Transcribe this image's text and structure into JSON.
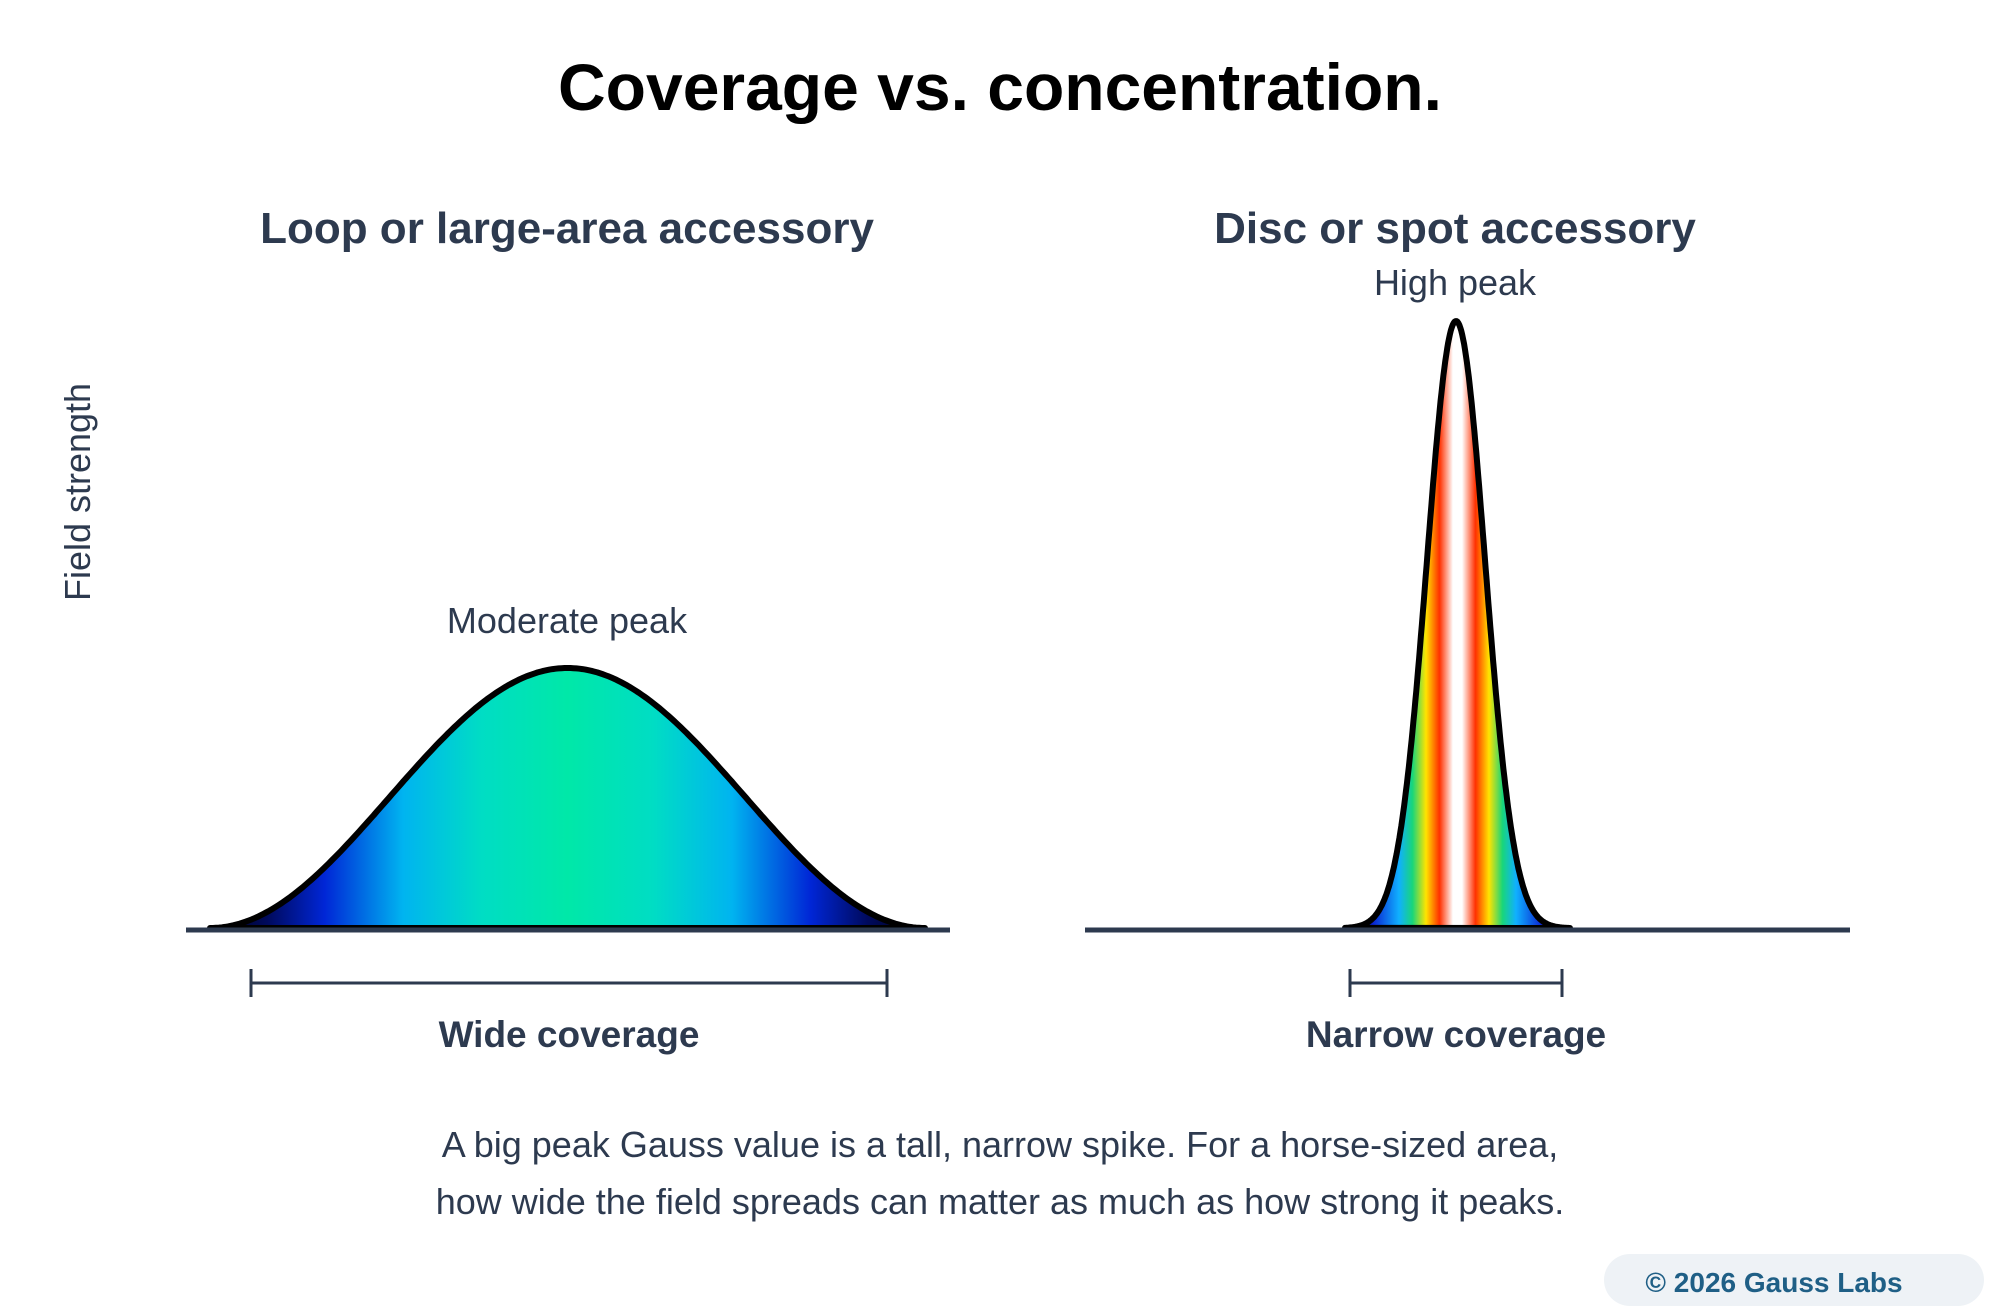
{
  "title": "Coverage vs. concentration.",
  "y_axis_label": "Field strength",
  "panels": [
    {
      "title": "Loop or large-area accessory",
      "peak_label": "Moderate peak",
      "coverage_label": "Wide coverage",
      "relative_peak_height": 0.43,
      "relative_coverage_width": 0.83
    },
    {
      "title": "Disc or spot accessory",
      "peak_label": "High peak",
      "coverage_label": "Narrow coverage",
      "relative_peak_height": 1.0,
      "relative_coverage_width": 0.28
    }
  ],
  "caption": {
    "line1": "A big peak Gauss value is a tall, narrow spike. For a horse-sized area,",
    "line2": "how wide the field spreads can matter as much as how strong it peaks."
  },
  "footer": {
    "copyright": "© 2026 Gauss Labs"
  },
  "colors": {
    "baseline": "#2d3a4f",
    "text": "#2d3a4f",
    "curve_outline": "#000000",
    "badge_bg": "#eef2f6",
    "badge_text": "#1f5f86"
  }
}
